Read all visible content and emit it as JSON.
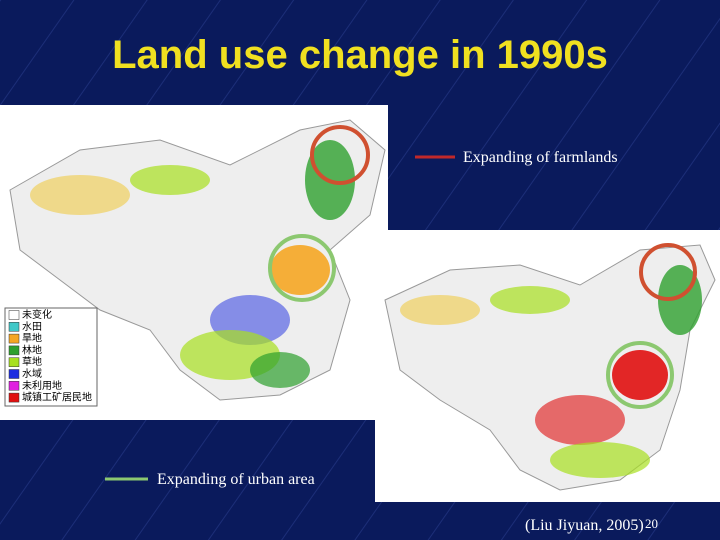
{
  "title": "Land use change in 1990s",
  "legend": {
    "items": [
      {
        "label": "未变化",
        "color": "#ffffff"
      },
      {
        "label": "水田",
        "color": "#40c8c8"
      },
      {
        "label": "旱地",
        "color": "#f5a623"
      },
      {
        "label": "林地",
        "color": "#2ea02e"
      },
      {
        "label": "草地",
        "color": "#a8e020"
      },
      {
        "label": "水域",
        "color": "#1c2ce0"
      },
      {
        "label": "未利用地",
        "color": "#e020e0"
      },
      {
        "label": "城镇工矿居民地",
        "color": "#e01010"
      }
    ]
  },
  "annotations": [
    {
      "label": "Expanding of farmlands",
      "color": "#c0282a"
    },
    {
      "label": "Expanding of urban area",
      "color": "#8cc870"
    }
  ],
  "citation": "(Liu Jiyuan, 2005)",
  "page_number": "20"
}
